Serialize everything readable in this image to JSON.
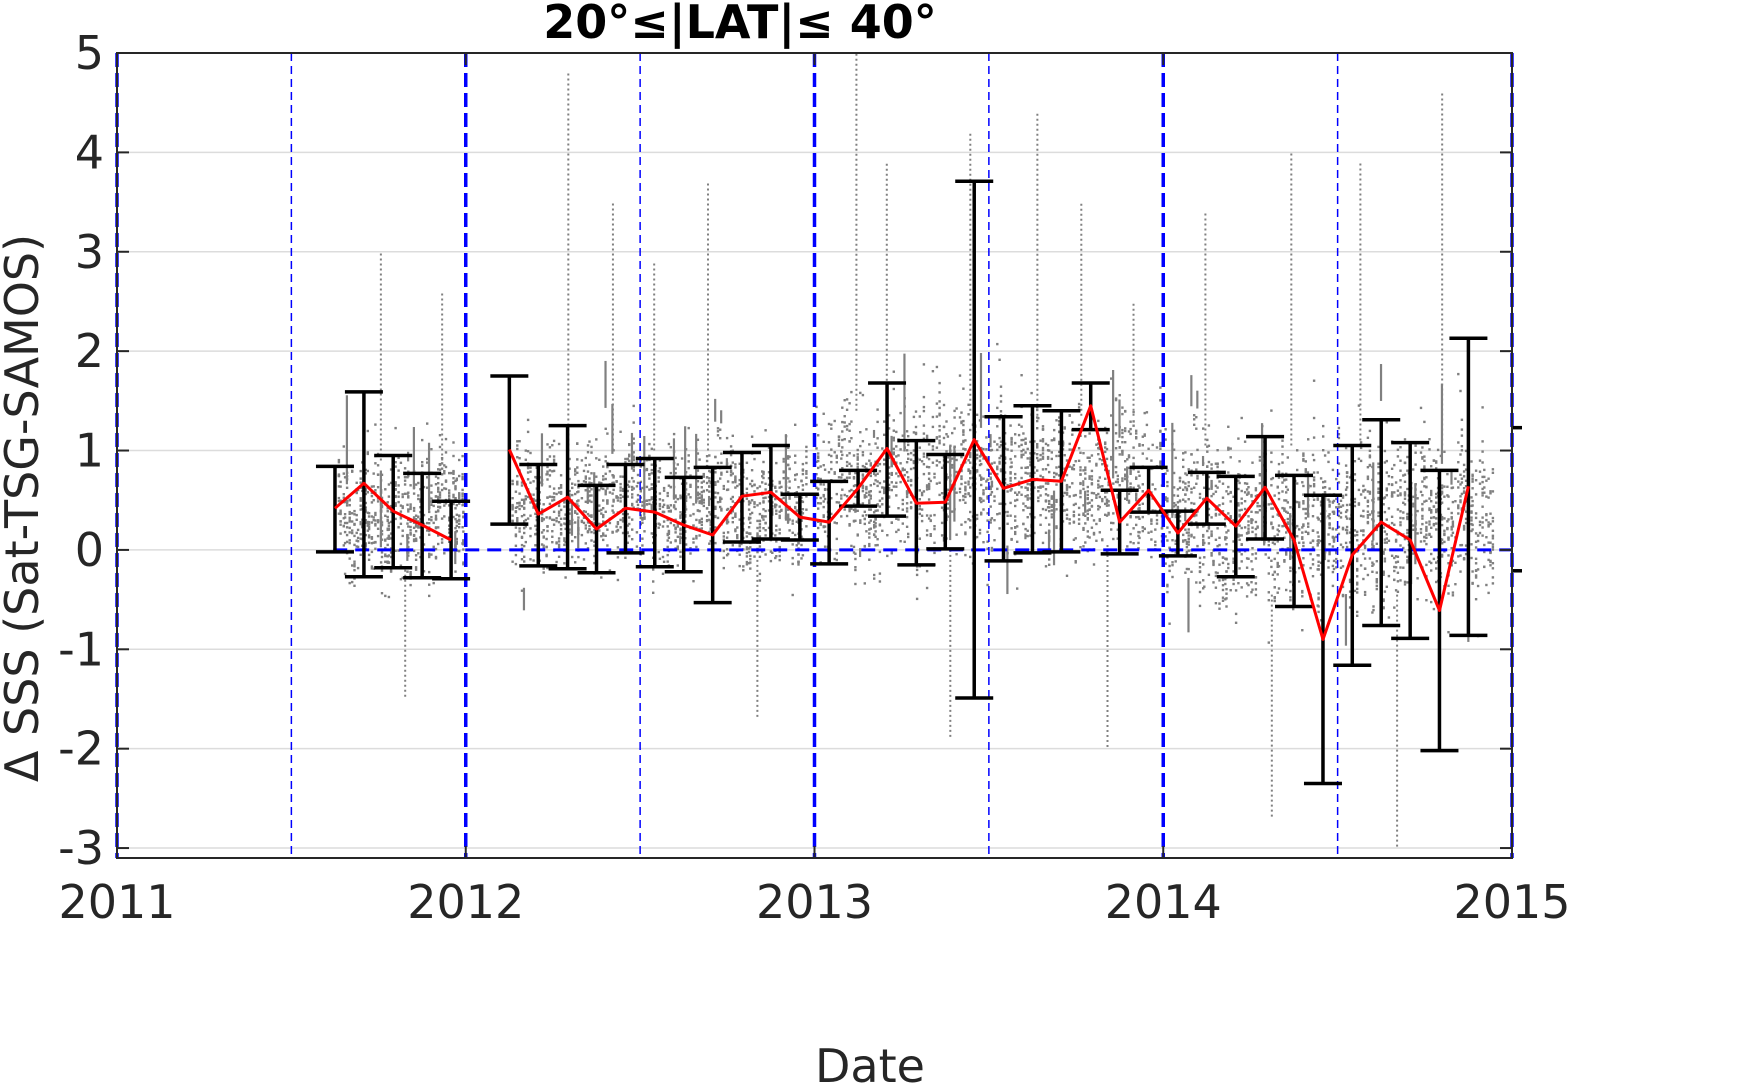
{
  "chart_data": {
    "type": "scatter",
    "title": "20°≤|LAT|≤ 40°",
    "xlabel": "Date",
    "ylabel": "Δ SSS (Sat-TSG-SAMOS)",
    "xlim": [
      2011,
      2015
    ],
    "ylim": [
      -3.1,
      5
    ],
    "x_ticks": [
      2011,
      2012,
      2013,
      2014,
      2015
    ],
    "x_tick_labels": [
      "2011",
      "2012",
      "2013",
      "2014",
      "2015"
    ],
    "y_ticks": [
      -3,
      -2,
      -1,
      0,
      1,
      2,
      3,
      4,
      5
    ],
    "y_tick_labels": [
      "-3",
      "-2",
      "-1",
      "0",
      "1",
      "2",
      "3",
      "4",
      "5"
    ],
    "grid": true,
    "colors": {
      "points": "#808080",
      "mean_line": "#ff0000",
      "error_bars": "#000000",
      "reference_lines": "#0000ff",
      "grid": "#dcdcdc"
    },
    "reference_lines": {
      "zero_line_y": 0,
      "year_boundaries": [
        2011,
        2012,
        2013,
        2014,
        2015
      ],
      "mid_year": [
        2011.5,
        2012.5,
        2013.5,
        2014.5
      ]
    },
    "scatter_clusters": [
      {
        "x": [
          2011.63,
          2012.0
        ],
        "center": 0.35,
        "spread": 0.55,
        "outliers": [
          3.0,
          -1.5,
          2.6
        ]
      },
      {
        "x": [
          2012.13,
          2012.98
        ],
        "center": 0.45,
        "spread": 0.55,
        "outliers": [
          4.8,
          3.5,
          2.9,
          3.7,
          -1.7
        ]
      },
      {
        "x": [
          2013.0,
          2013.6
        ],
        "center": 0.7,
        "spread": 0.7,
        "outliers": [
          5.0,
          3.9,
          -1.9,
          4.2
        ]
      },
      {
        "x": [
          2013.6,
          2014.0
        ],
        "center": 0.7,
        "spread": 0.65,
        "outliers": [
          4.4,
          3.5,
          -2.0,
          2.5
        ]
      },
      {
        "x": [
          2014.0,
          2014.95
        ],
        "center": 0.3,
        "spread": 0.75,
        "outliers": [
          3.4,
          -2.7,
          4.0,
          3.9,
          -3.0,
          4.6
        ]
      }
    ],
    "series": [
      {
        "type": "line",
        "x": [
          2011.625,
          2011.708,
          2011.792,
          2011.875,
          2011.958
        ],
        "mean": [
          0.42,
          0.67,
          0.39,
          0.25,
          0.1
        ],
        "lower": [
          -0.02,
          -0.27,
          -0.18,
          -0.28,
          -0.29
        ],
        "upper": [
          0.84,
          1.59,
          0.95,
          0.77,
          0.49
        ]
      },
      {
        "type": "line",
        "x": [
          2012.125,
          2012.208,
          2012.292,
          2012.375,
          2012.458,
          2012.542,
          2012.625,
          2012.708,
          2012.792,
          2012.875,
          2012.958,
          2013.042,
          2013.125,
          2013.208,
          2013.292,
          2013.375,
          2013.458,
          2013.542,
          2013.625,
          2013.708,
          2013.792,
          2013.875,
          2013.958,
          2014.042,
          2014.125,
          2014.208,
          2014.292,
          2014.375,
          2014.458,
          2014.542,
          2014.625,
          2014.708,
          2014.792,
          2014.875
        ],
        "mean": [
          1.01,
          0.36,
          0.53,
          0.21,
          0.42,
          0.38,
          0.25,
          0.15,
          0.54,
          0.58,
          0.33,
          0.28,
          0.62,
          1.02,
          0.47,
          0.48,
          1.11,
          0.62,
          0.71,
          0.69,
          1.45,
          0.28,
          0.6,
          0.17,
          0.52,
          0.24,
          0.63,
          0.1,
          -0.9,
          -0.05,
          0.28,
          0.1,
          -0.61,
          0.64
        ],
        "lower": [
          0.26,
          -0.16,
          -0.19,
          -0.23,
          -0.03,
          -0.17,
          -0.22,
          -0.53,
          0.08,
          0.11,
          0.1,
          -0.14,
          0.44,
          0.34,
          -0.15,
          0.01,
          -1.49,
          -0.11,
          -0.03,
          -0.02,
          1.21,
          -0.04,
          0.38,
          -0.06,
          0.26,
          -0.27,
          0.11,
          -0.57,
          -2.35,
          -1.16,
          -0.76,
          -0.89,
          -2.02,
          -0.86
        ],
        "upper": [
          1.75,
          0.86,
          1.25,
          0.65,
          0.86,
          0.92,
          0.73,
          0.83,
          0.98,
          1.05,
          0.56,
          0.69,
          0.8,
          1.68,
          1.1,
          0.96,
          3.71,
          1.34,
          1.45,
          1.4,
          1.68,
          0.6,
          0.83,
          0.39,
          0.78,
          0.74,
          1.14,
          0.75,
          0.55,
          1.05,
          1.31,
          1.08,
          0.8,
          2.13
        ]
      }
    ]
  }
}
